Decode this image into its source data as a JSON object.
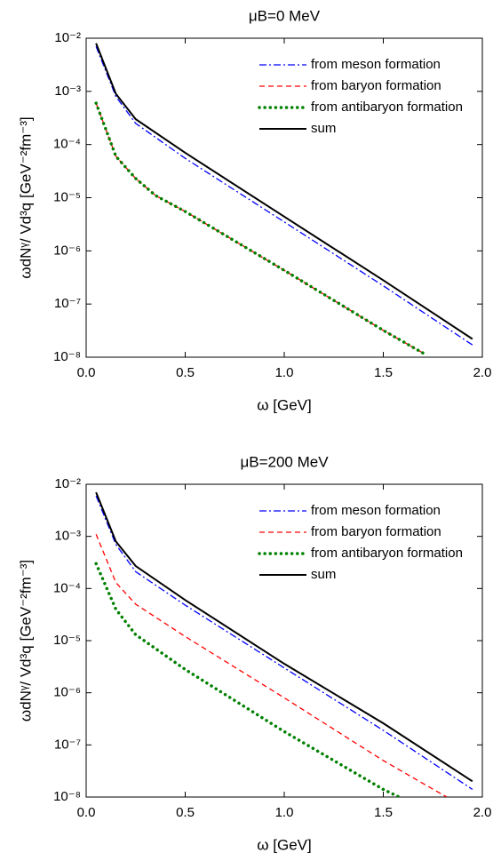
{
  "chart_data": [
    {
      "type": "line",
      "title": "μB=0 MeV",
      "x_label": "ω [GeV]",
      "y_label": "ωdNᵞ/ Vd³q [GeV⁻²fm⁻³]",
      "log_y": true,
      "xlim": [
        0,
        2
      ],
      "ylim": [
        1e-08,
        0.01
      ],
      "xticks": [
        {
          "value": 0,
          "label": "0.0"
        },
        0.5,
        {
          "value": 1,
          "label": "1.0"
        },
        1.5,
        {
          "value": 2,
          "label": "2.0"
        }
      ],
      "yticks": [
        {
          "value": 1e-08,
          "label": "10⁻⁸"
        },
        {
          "value": 1e-07,
          "label": "10⁻⁷"
        },
        {
          "value": 1e-06,
          "label": "10⁻⁶"
        },
        {
          "value": 1e-05,
          "label": "10⁻⁵"
        },
        {
          "value": 0.0001,
          "label": "10⁻⁴"
        },
        {
          "value": 0.001,
          "label": "10⁻³"
        },
        {
          "value": 0.01,
          "label": "10⁻²"
        }
      ],
      "legend": "upper right",
      "series": [
        {
          "name": "from meson formation",
          "color": "#0000ff",
          "style": "dash-dot",
          "x": [
            0.05,
            0.15,
            0.25,
            0.5,
            1.0,
            1.5,
            1.95
          ],
          "values": [
            0.007,
            0.0008,
            0.00025,
            5.5e-05,
            3.5e-06,
            2.2e-07,
            1.7e-08
          ]
        },
        {
          "name": "from baryon formation",
          "color": "#ff0000",
          "style": "dash",
          "x": [
            0.05,
            0.15,
            0.25,
            0.35,
            0.5,
            1.0,
            1.5,
            1.7
          ],
          "values": [
            0.0006,
            6e-05,
            2.3e-05,
            1.1e-05,
            5.5e-06,
            4.3e-07,
            3.2e-08,
            1.2e-08
          ]
        },
        {
          "name": "from antibaryon formation",
          "color": "#008000",
          "style": "dot",
          "x": [
            0.05,
            0.15,
            0.25,
            0.35,
            0.5,
            1.0,
            1.5,
            1.7
          ],
          "values": [
            0.0006,
            6e-05,
            2.3e-05,
            1.1e-05,
            5.5e-06,
            4.3e-07,
            3.2e-08,
            1.2e-08
          ]
        },
        {
          "name": "sum",
          "color": "#000000",
          "style": "solid",
          "x": [
            0.05,
            0.15,
            0.25,
            0.5,
            1.0,
            1.5,
            1.95
          ],
          "values": [
            0.008,
            0.0009,
            0.0003,
            7e-05,
            4.4e-06,
            2.8e-07,
            2.2e-08
          ]
        }
      ]
    },
    {
      "type": "line",
      "title": "μB=200 MeV",
      "x_label": "ω [GeV]",
      "y_label": "ωdNᵞ/ Vd³q [GeV⁻²fm⁻³]",
      "log_y": true,
      "xlim": [
        0,
        2
      ],
      "ylim": [
        1e-08,
        0.01
      ],
      "xticks": [
        {
          "value": 0,
          "label": "0.0"
        },
        0.5,
        {
          "value": 1,
          "label": "1.0"
        },
        1.5,
        {
          "value": 2,
          "label": "2.0"
        }
      ],
      "yticks": [
        {
          "value": 1e-08,
          "label": "10⁻⁸"
        },
        {
          "value": 1e-07,
          "label": "10⁻⁷"
        },
        {
          "value": 1e-06,
          "label": "10⁻⁶"
        },
        {
          "value": 1e-05,
          "label": "10⁻⁵"
        },
        {
          "value": 0.0001,
          "label": "10⁻⁴"
        },
        {
          "value": 0.001,
          "label": "10⁻³"
        },
        {
          "value": 0.01,
          "label": "10⁻²"
        }
      ],
      "legend": "upper right",
      "series": [
        {
          "name": "from meson formation",
          "color": "#0000ff",
          "style": "dash-dot",
          "x": [
            0.05,
            0.15,
            0.25,
            0.5,
            1.0,
            1.5,
            1.95
          ],
          "values": [
            0.006,
            0.0007,
            0.00021,
            4.8e-05,
            3e-06,
            1.9e-07,
            1.4e-08
          ]
        },
        {
          "name": "from baryon formation",
          "color": "#ff0000",
          "style": "dash",
          "x": [
            0.05,
            0.15,
            0.25,
            0.5,
            1.0,
            1.5,
            1.82
          ],
          "values": [
            0.0011,
            0.00013,
            5e-05,
            1.2e-05,
            8e-07,
            5e-08,
            1e-08
          ]
        },
        {
          "name": "from antibaryon formation",
          "color": "#008000",
          "style": "dot",
          "x": [
            0.05,
            0.15,
            0.25,
            0.5,
            1.0,
            1.5,
            1.58
          ],
          "values": [
            0.0003,
            4e-05,
            1.3e-05,
            2.8e-06,
            1.8e-07,
            1.4e-08,
            1e-08
          ]
        },
        {
          "name": "sum",
          "color": "#000000",
          "style": "solid",
          "x": [
            0.05,
            0.15,
            0.25,
            0.5,
            1.0,
            1.5,
            1.95
          ],
          "values": [
            0.007,
            0.0008,
            0.00027,
            6e-05,
            3.6e-06,
            2.6e-07,
            2e-08
          ]
        }
      ]
    }
  ]
}
